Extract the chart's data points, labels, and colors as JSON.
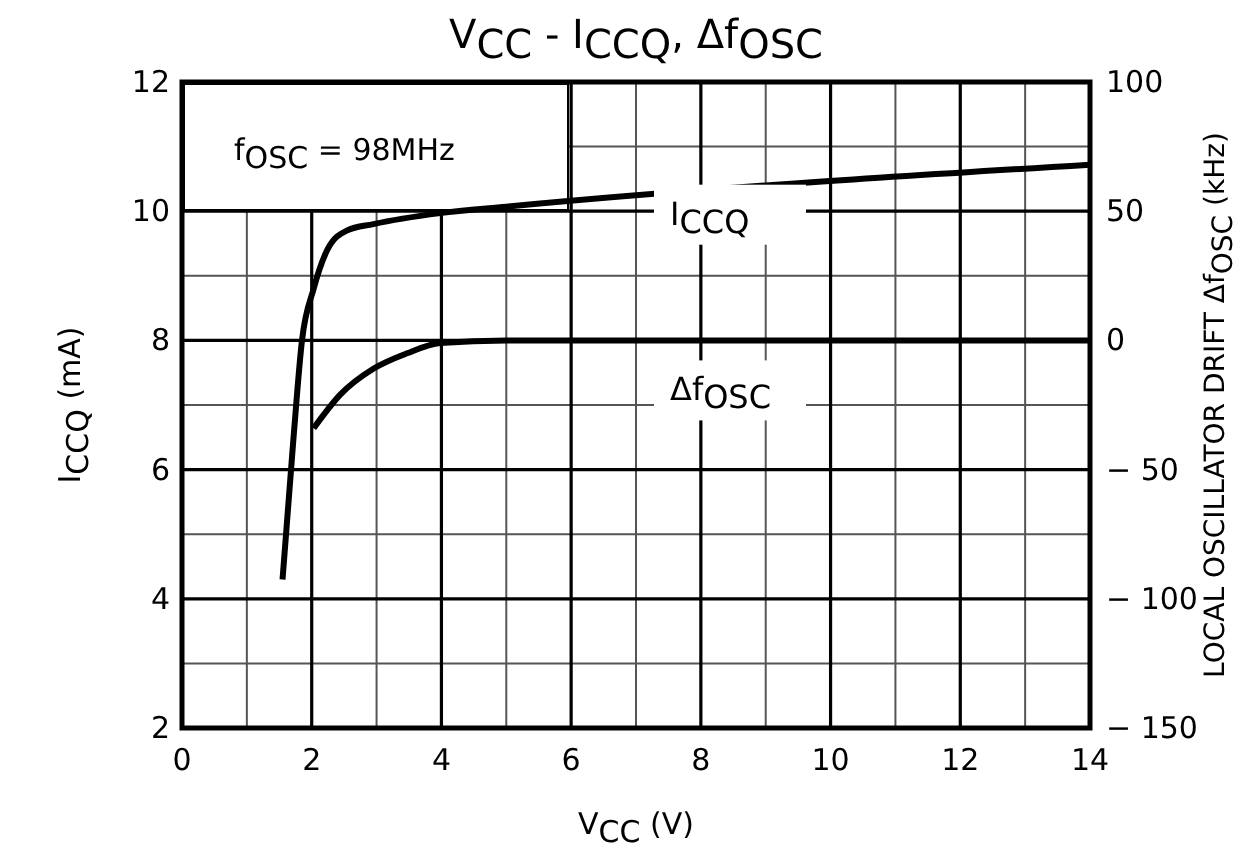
{
  "chart_data": {
    "type": "line",
    "title": "V$_{CC}$  -  I$_{CCQ}$, Δf$_{OSC}$",
    "xlabel": "V$_{CC}$   (V)",
    "ylabel": "I$_{CCQ}$   (mA)",
    "y2label": "LOCAL OSCILLATOR DRIFT   Δf$_{OSC}$   (kHz)",
    "annotations": [
      "f$_{OSC}$ = 98MHz"
    ],
    "series": [
      {
        "name": "I$_{CCQ}$",
        "color": "#000000",
        "x": [
          1.55,
          1.72,
          1.85,
          2.03,
          2.24,
          2.54,
          2.95,
          3.98,
          5.0,
          14
        ],
        "values": [
          4.3,
          6.5,
          8.0,
          8.8,
          9.4,
          9.7,
          9.8,
          9.97,
          10.07,
          10.72
        ]
      },
      {
        "name": "Δf$_{OSC}$",
        "color": "#000000",
        "axis": "y2",
        "x": [
          2.03,
          2.44,
          2.95,
          3.47,
          3.98,
          5.0,
          14
        ],
        "values": [
          -34,
          -21,
          -11,
          -5,
          -1,
          0,
          0
        ]
      }
    ],
    "xlim": [
      0,
      14
    ],
    "xticks": [
      0,
      2,
      4,
      6,
      8,
      10,
      12,
      14
    ],
    "ylim": [
      2,
      12
    ],
    "yticks": [
      2,
      4,
      6,
      8,
      10,
      12
    ],
    "y2lim": [
      -150,
      100
    ],
    "y2ticks": [
      {
        "value": -150,
        "label": "− 150"
      },
      {
        "value": -100,
        "label": "− 100"
      },
      {
        "value": -50,
        "label": "− 50"
      },
      0,
      50,
      100
    ],
    "grid": true,
    "marker": "none",
    "line_style": "solid"
  }
}
